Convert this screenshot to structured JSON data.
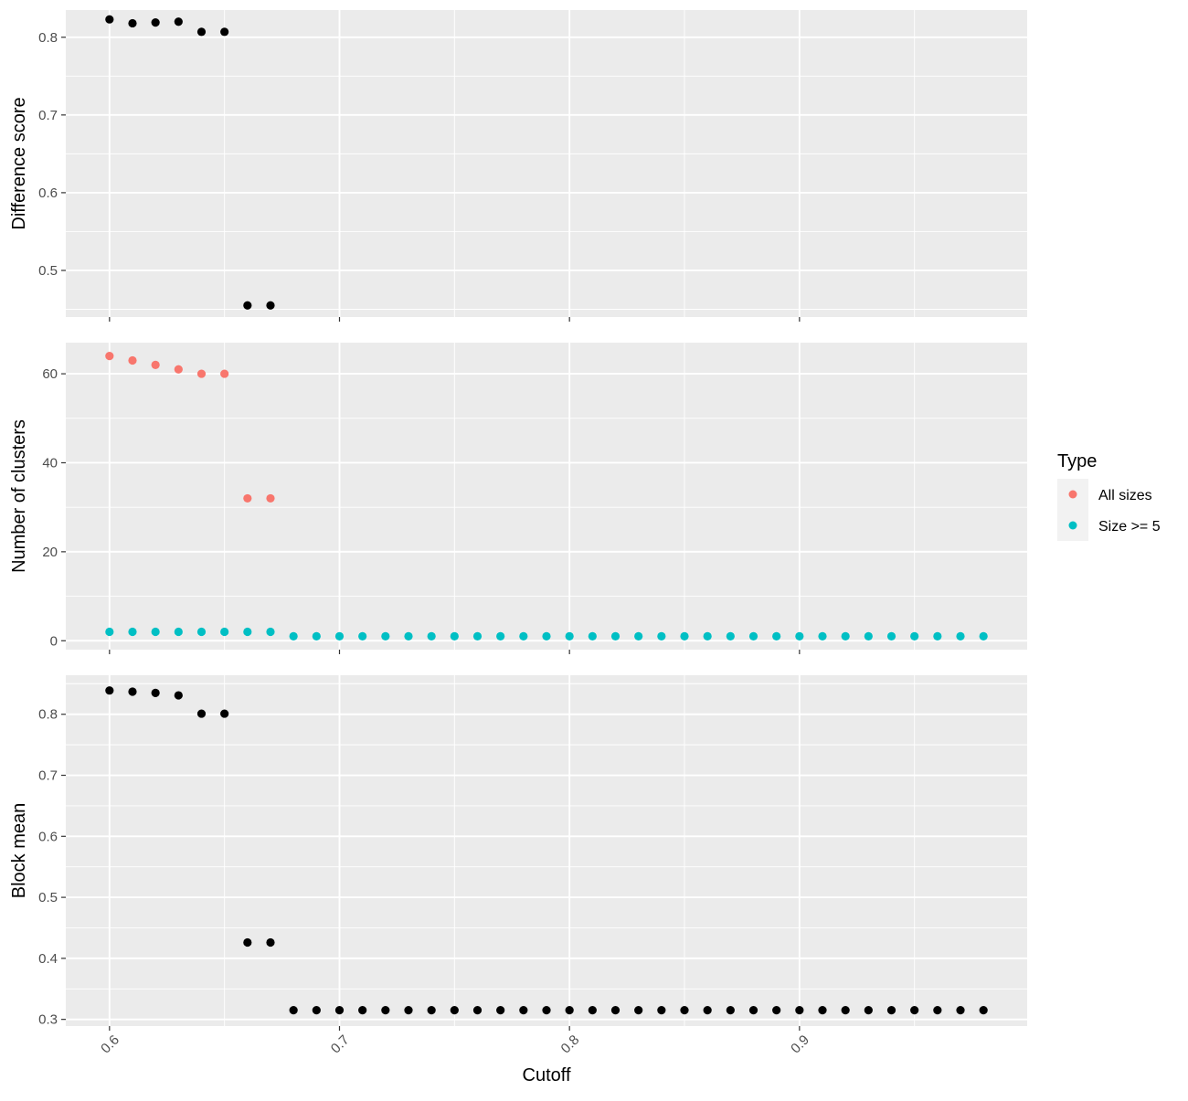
{
  "colors": {
    "panel_bg": "#EBEBEB",
    "grid": "#FFFFFF",
    "tick": "#333333",
    "black_points": "#000000",
    "all_sizes": "#F8766D",
    "size_ge_5": "#00BFC4"
  },
  "chart_data": [
    {
      "type": "scatter",
      "panel": "top",
      "ylabel": "Difference score",
      "xlim": [
        0.581,
        0.999
      ],
      "ylim": [
        0.44,
        0.835
      ],
      "yticks": [
        "0.5",
        "0.6",
        "0.7",
        "0.8"
      ],
      "grid": true,
      "series": [
        {
          "x": [
            0.6,
            0.61,
            0.62,
            0.63,
            0.64,
            0.65,
            0.66,
            0.67
          ],
          "y": [
            0.823,
            0.818,
            0.819,
            0.82,
            0.807,
            0.807,
            0.455,
            0.455
          ]
        }
      ]
    },
    {
      "type": "scatter",
      "panel": "middle",
      "ylabel": "Number of clusters",
      "xlim": [
        0.581,
        0.999
      ],
      "ylim": [
        -2,
        67
      ],
      "yticks": [
        "0",
        "20",
        "40",
        "60"
      ],
      "grid": true,
      "series": [
        {
          "name": "All sizes",
          "x": [
            0.6,
            0.61,
            0.62,
            0.63,
            0.64,
            0.65,
            0.66,
            0.67
          ],
          "y": [
            64,
            63,
            62,
            61,
            60,
            60,
            32,
            32
          ]
        },
        {
          "name": "Size >= 5",
          "x": [
            0.6,
            0.61,
            0.62,
            0.63,
            0.64,
            0.65,
            0.66,
            0.67,
            0.68,
            0.69,
            0.7,
            0.71,
            0.72,
            0.73,
            0.74,
            0.75,
            0.76,
            0.77,
            0.78,
            0.79,
            0.8,
            0.81,
            0.82,
            0.83,
            0.84,
            0.85,
            0.86,
            0.87,
            0.88,
            0.89,
            0.9,
            0.91,
            0.92,
            0.93,
            0.94,
            0.95,
            0.96,
            0.97,
            0.98
          ],
          "y": [
            2,
            2,
            2,
            2,
            2,
            2,
            2,
            2,
            1,
            1,
            1,
            1,
            1,
            1,
            1,
            1,
            1,
            1,
            1,
            1,
            1,
            1,
            1,
            1,
            1,
            1,
            1,
            1,
            1,
            1,
            1,
            1,
            1,
            1,
            1,
            1,
            1,
            1,
            1
          ]
        }
      ]
    },
    {
      "type": "scatter",
      "panel": "bottom",
      "ylabel": "Block mean",
      "xlabel": "Cutoff",
      "xlim": [
        0.581,
        0.999
      ],
      "ylim": [
        0.289,
        0.864
      ],
      "xticks": [
        "0.6",
        "0.7",
        "0.8",
        "0.9"
      ],
      "yticks": [
        "0.3",
        "0.4",
        "0.5",
        "0.6",
        "0.7",
        "0.8"
      ],
      "grid": true,
      "series": [
        {
          "x": [
            0.6,
            0.61,
            0.62,
            0.63,
            0.64,
            0.65,
            0.66,
            0.67,
            0.68,
            0.69,
            0.7,
            0.71,
            0.72,
            0.73,
            0.74,
            0.75,
            0.76,
            0.77,
            0.78,
            0.79,
            0.8,
            0.81,
            0.82,
            0.83,
            0.84,
            0.85,
            0.86,
            0.87,
            0.88,
            0.89,
            0.9,
            0.91,
            0.92,
            0.93,
            0.94,
            0.95,
            0.96,
            0.97,
            0.98
          ],
          "y": [
            0.839,
            0.837,
            0.835,
            0.831,
            0.801,
            0.801,
            0.426,
            0.426,
            0.315,
            0.315,
            0.315,
            0.315,
            0.315,
            0.315,
            0.315,
            0.315,
            0.315,
            0.315,
            0.315,
            0.315,
            0.315,
            0.315,
            0.315,
            0.315,
            0.315,
            0.315,
            0.315,
            0.315,
            0.315,
            0.315,
            0.315,
            0.315,
            0.315,
            0.315,
            0.315,
            0.315,
            0.315,
            0.315,
            0.315
          ]
        }
      ]
    }
  ],
  "legend": {
    "title": "Type",
    "position": "right",
    "items": [
      {
        "label": "All sizes",
        "color": "#F8766D"
      },
      {
        "label": "Size >= 5",
        "color": "#00BFC4"
      }
    ]
  }
}
